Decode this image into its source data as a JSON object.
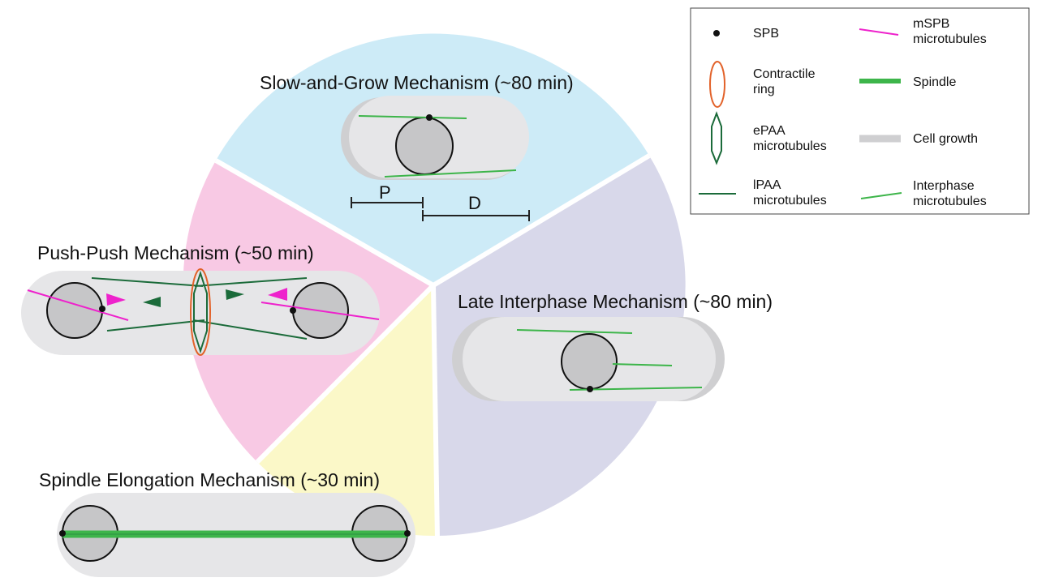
{
  "phases": {
    "slow_grow": {
      "title": "Slow-and-Grow Mechanism (~80 min)",
      "color": "#cdebf7"
    },
    "push_push": {
      "title": "Push-Push Mechanism (~50 min)",
      "color": "#f8c9e4"
    },
    "spindle_elongation": {
      "title": "Spindle Elongation Mechanism (~30 min)",
      "color": "#fbf8c8"
    },
    "late_interphase": {
      "title": "Late Interphase Mechanism (~80 min)",
      "color": "#d8d8ea"
    }
  },
  "scale": {
    "proximal": "P",
    "distal": "D"
  },
  "legend": {
    "spb": {
      "line1": "SPB",
      "line2": ""
    },
    "contractile_ring": {
      "line1": "Contractile",
      "line2": "ring"
    },
    "epaa": {
      "line1": "ePAA",
      "line2": "microtubules"
    },
    "lpaa": {
      "line1": "lPAA",
      "line2": "microtubules"
    },
    "mspb": {
      "line1": "mSPB",
      "line2": "microtubules"
    },
    "spindle": {
      "line1": "Spindle",
      "line2": ""
    },
    "cell_growth": {
      "line1": "Cell growth",
      "line2": ""
    },
    "interphase": {
      "line1": "Interphase",
      "line2": "microtubules"
    }
  },
  "colors": {
    "spb": "#111111",
    "contractile_ring": "#e2622a",
    "epaa": "#1b6b3a",
    "lpaa": "#1b6b3a",
    "mspb": "#ee22cc",
    "spindle": "#3db54a",
    "cell_growth": "#cfcfd1",
    "interphase": "#3db54a",
    "cell_body": "#e6e6e8",
    "nucleus": "#c6c6c8",
    "push_arrow_magenta": "#ee22cc",
    "push_arrow_green": "#1b6b3a"
  }
}
